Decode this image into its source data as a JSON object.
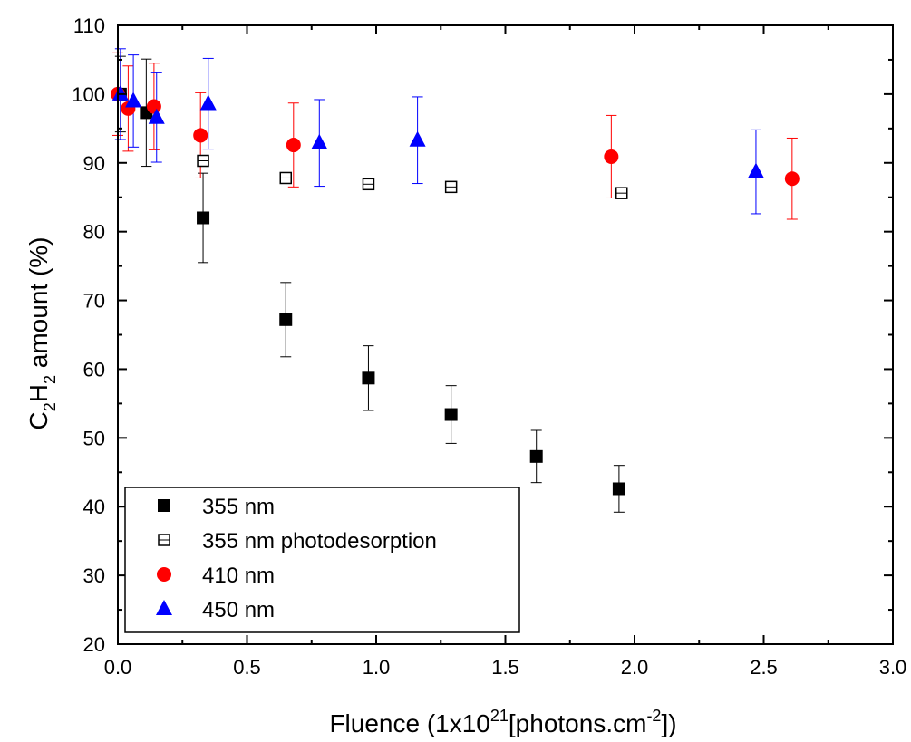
{
  "chart_data": {
    "type": "scatter",
    "xlabel": {
      "base": "Fluence (1x10",
      "sup1": "21",
      "mid": "[photons.cm",
      "sup2": "-2",
      "end": "])"
    },
    "ylabel": {
      "c": "C",
      "sub1": "2",
      "h": "H",
      "sub2": "2",
      "rest": " amount (%)"
    },
    "xlim": [
      0,
      3.0
    ],
    "ylim": [
      20,
      110
    ],
    "x_ticks": [
      0.0,
      0.5,
      1.0,
      1.5,
      2.0,
      2.5,
      3.0
    ],
    "x_tick_labels": [
      "0.0",
      "0.5",
      "1.0",
      "1.5",
      "2.0",
      "2.5",
      "3.0"
    ],
    "y_ticks": [
      20,
      30,
      40,
      50,
      60,
      70,
      80,
      90,
      100,
      110
    ],
    "y_tick_labels": [
      "20",
      "30",
      "40",
      "50",
      "60",
      "70",
      "80",
      "90",
      "100",
      "110"
    ],
    "grid": false,
    "legend_position": "bottom-left",
    "series": [
      {
        "name": "355 nm",
        "marker": "filled-square",
        "color": "#000000",
        "points": [
          {
            "x": 0.01,
            "y": 100,
            "err": 5.5
          },
          {
            "x": 0.11,
            "y": 97.3,
            "err": 7.8
          },
          {
            "x": 0.33,
            "y": 82,
            "err": 6.5
          },
          {
            "x": 0.65,
            "y": 67.2,
            "err": 5.4
          },
          {
            "x": 0.97,
            "y": 58.7,
            "err": 4.7
          },
          {
            "x": 1.29,
            "y": 53.4,
            "err": 4.2
          },
          {
            "x": 1.62,
            "y": 47.3,
            "err": 3.8
          },
          {
            "x": 1.94,
            "y": 42.6,
            "err": 3.4
          }
        ]
      },
      {
        "name": "355 nm photodesorption",
        "marker": "hollow-square",
        "color": "#000000",
        "points": [
          {
            "x": 0.33,
            "y": 90.3,
            "err": 0.5
          },
          {
            "x": 0.65,
            "y": 87.8,
            "err": 0.5
          },
          {
            "x": 0.97,
            "y": 86.9,
            "err": 0.5
          },
          {
            "x": 1.29,
            "y": 86.5,
            "err": 0.5
          },
          {
            "x": 1.95,
            "y": 85.6,
            "err": 0.5
          }
        ]
      },
      {
        "name": "410 nm",
        "marker": "circle",
        "color": "#ff0000",
        "points": [
          {
            "x": 0.0,
            "y": 100,
            "err": 6.0
          },
          {
            "x": 0.04,
            "y": 97.9,
            "err": 6.2
          },
          {
            "x": 0.14,
            "y": 98.2,
            "err": 6.3
          },
          {
            "x": 0.32,
            "y": 94.0,
            "err": 6.2
          },
          {
            "x": 0.68,
            "y": 92.6,
            "err": 6.1
          },
          {
            "x": 1.91,
            "y": 90.9,
            "err": 6.0
          },
          {
            "x": 2.61,
            "y": 87.7,
            "err": 5.9
          }
        ]
      },
      {
        "name": "450 nm",
        "marker": "triangle",
        "color": "#0000ff",
        "points": [
          {
            "x": 0.01,
            "y": 100,
            "err": 6.6
          },
          {
            "x": 0.06,
            "y": 99.0,
            "err": 6.7
          },
          {
            "x": 0.15,
            "y": 96.6,
            "err": 6.5
          },
          {
            "x": 0.35,
            "y": 98.6,
            "err": 6.6
          },
          {
            "x": 0.78,
            "y": 92.9,
            "err": 6.3
          },
          {
            "x": 1.16,
            "y": 93.3,
            "err": 6.3
          },
          {
            "x": 2.47,
            "y": 88.7,
            "err": 6.1
          }
        ]
      }
    ]
  }
}
